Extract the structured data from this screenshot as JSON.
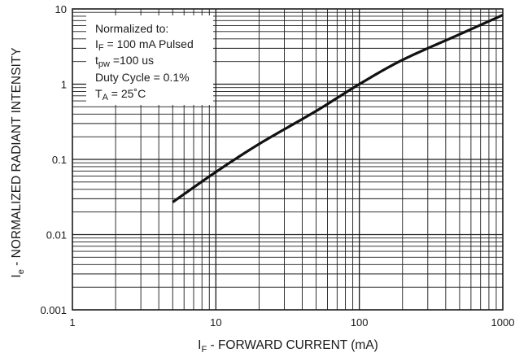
{
  "chart_data": {
    "type": "line",
    "x_scale": "log",
    "y_scale": "log",
    "xlim": [
      1,
      1000
    ],
    "ylim": [
      0.001,
      10
    ],
    "grid": true,
    "xlabel": {
      "main": "I",
      "sub": "F",
      "rest": " - FORWARD CURRENT (mA)"
    },
    "ylabel": {
      "main": "I",
      "sub": "e",
      "rest": " - NORMALIZED RADIANT INTENSITY"
    },
    "x_ticks": [
      {
        "value": 1,
        "label": "1"
      },
      {
        "value": 10,
        "label": "10"
      },
      {
        "value": 100,
        "label": "100"
      },
      {
        "value": 1000,
        "label": "1000"
      }
    ],
    "y_ticks": [
      {
        "value": 10,
        "label": "10"
      },
      {
        "value": 1,
        "label": "1"
      },
      {
        "value": 0.1,
        "label": "0.1"
      },
      {
        "value": 0.01,
        "label": "0.01"
      },
      {
        "value": 0.001,
        "label": "0.001"
      }
    ],
    "annotation": {
      "line1": "Normalized to:",
      "line2": {
        "main": "I",
        "sub": "F",
        "rest": " = 100 mA Pulsed"
      },
      "line3": {
        "main": "t",
        "sub": "pw",
        "rest": " =100 us"
      },
      "line4": "Duty Cycle = 0.1%",
      "line5": {
        "main": "T",
        "sub": "A",
        "rest": " = 25˚C"
      }
    },
    "series": [
      {
        "color": "#111111",
        "points": [
          {
            "x": 5,
            "y": 0.027
          },
          {
            "x": 10,
            "y": 0.068
          },
          {
            "x": 20,
            "y": 0.16
          },
          {
            "x": 50,
            "y": 0.44
          },
          {
            "x": 100,
            "y": 1.0
          },
          {
            "x": 200,
            "y": 2.1
          },
          {
            "x": 500,
            "y": 4.6
          },
          {
            "x": 1000,
            "y": 8.3
          }
        ]
      }
    ]
  }
}
